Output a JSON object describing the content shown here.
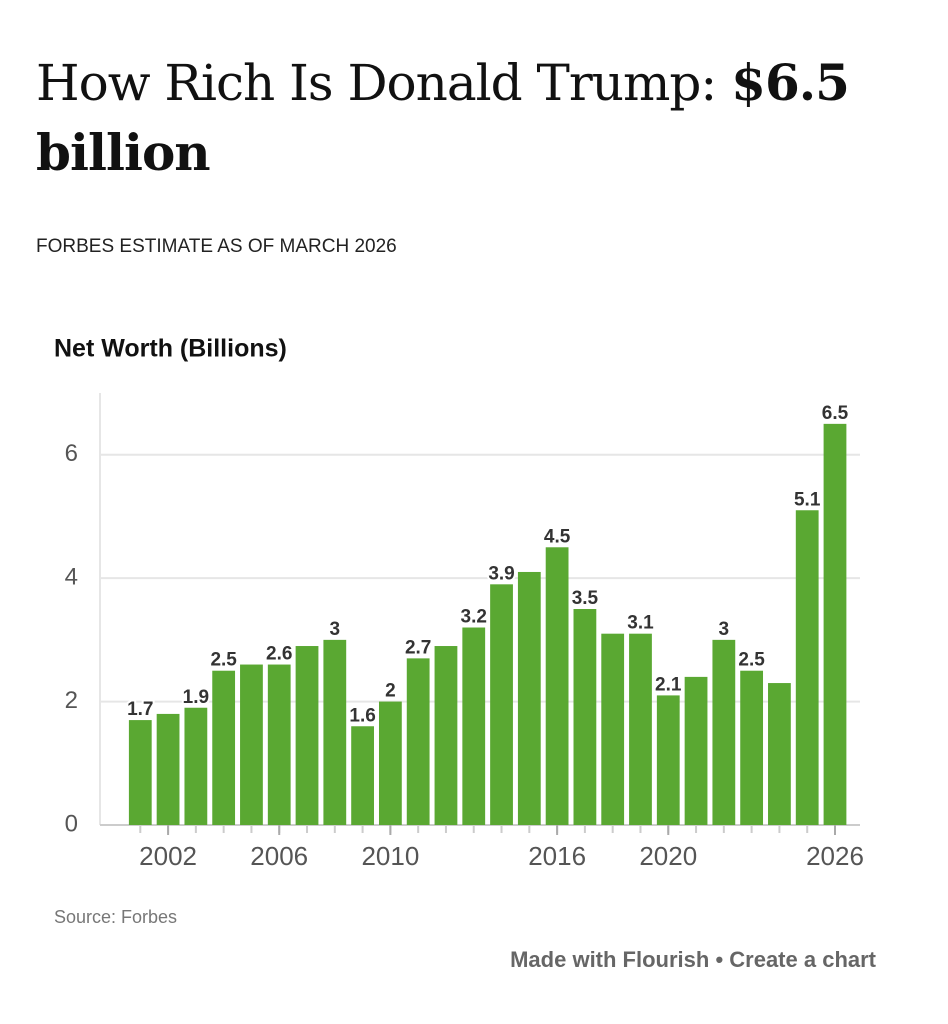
{
  "chart_data": {
    "type": "bar",
    "title": "How Rich Is Donald Trump:",
    "title_highlight": "$6.5 billion",
    "subtitle": "FORBES ESTIMATE AS OF MARCH 2026",
    "y_axis_title": "Net Worth (Billions)",
    "x": [
      2001,
      2002,
      2003,
      2004,
      2005,
      2006,
      2007,
      2008,
      2009,
      2010,
      2011,
      2012,
      2013,
      2014,
      2015,
      2016,
      2017,
      2018,
      2019,
      2020,
      2021,
      2022,
      2023,
      2024,
      2025,
      2026
    ],
    "values": [
      1.7,
      1.8,
      1.9,
      2.5,
      2.6,
      2.6,
      2.9,
      3,
      1.6,
      2,
      2.7,
      2.9,
      3.2,
      3.9,
      4.1,
      4.5,
      3.5,
      3.1,
      3.1,
      2.1,
      2.4,
      3,
      2.5,
      2.3,
      5.1,
      6.5
    ],
    "value_labels": [
      "1.7",
      null,
      "1.9",
      "2.5",
      null,
      "2.6",
      null,
      "3",
      "1.6",
      "2",
      "2.7",
      null,
      "3.2",
      "3.9",
      null,
      "4.5",
      "3.5",
      null,
      "3.1",
      "2.1",
      null,
      "3",
      "2.5",
      null,
      "5.1",
      "6.5"
    ],
    "color": "#5aa832",
    "xlim": [
      1999.55,
      2026.9
    ],
    "xticks": [
      2002,
      2006,
      2010,
      2016,
      2020,
      2026
    ],
    "ylim": [
      0,
      7
    ],
    "yticks": [
      0,
      2,
      4,
      6
    ],
    "grid": true,
    "source": "Source: Forbes",
    "footer": "Made with Flourish • Create a chart"
  }
}
